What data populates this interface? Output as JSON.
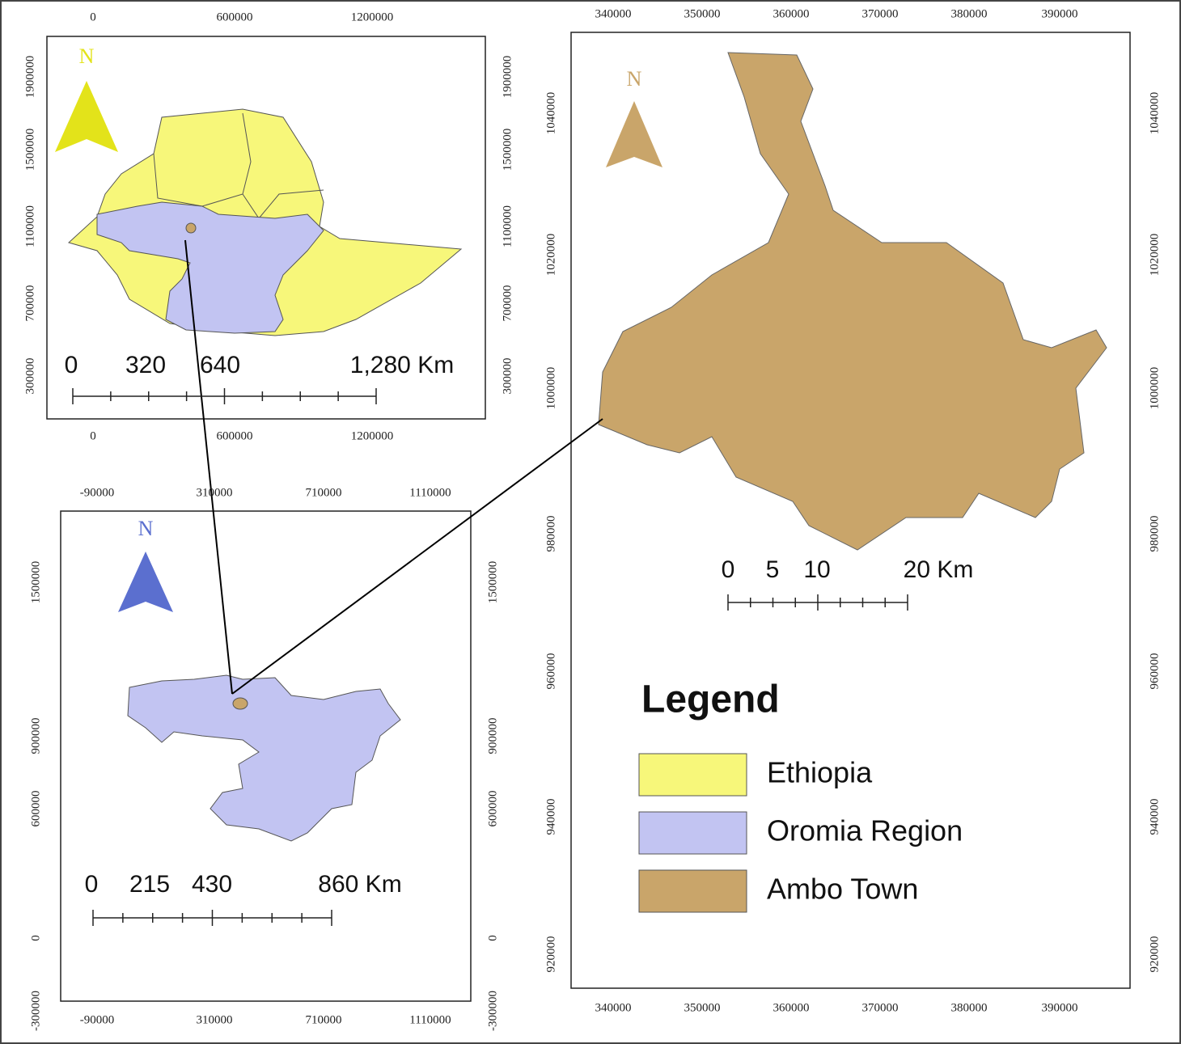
{
  "ethiopia_map": {
    "north": "N",
    "top_ticks": [
      "0",
      "600000",
      "1200000"
    ],
    "bottom_ticks": [
      "0",
      "600000",
      "1200000"
    ],
    "left_ticks": [
      "300000",
      "700000",
      "1100000",
      "1500000",
      "1900000"
    ],
    "right_ticks": [
      "300000",
      "700000",
      "1100000",
      "1500000",
      "1900000"
    ],
    "scale_labels": [
      "0",
      "320",
      "640",
      "1,280 Km"
    ]
  },
  "oromia_map": {
    "north": "N",
    "top_ticks": [
      "-90000",
      "310000",
      "710000",
      "1110000"
    ],
    "bottom_ticks": [
      "-90000",
      "310000",
      "710000",
      "1110000"
    ],
    "left_ticks": [
      "-300000",
      "0",
      "600000",
      "900000",
      "1500000"
    ],
    "right_ticks": [
      "-300000",
      "0",
      "600000",
      "900000",
      "1500000"
    ],
    "scale_labels": [
      "0",
      "215",
      "430",
      "860 Km"
    ]
  },
  "ambo_map": {
    "north": "N",
    "top_ticks": [
      "340000",
      "350000",
      "360000",
      "370000",
      "380000",
      "390000"
    ],
    "bottom_ticks": [
      "340000",
      "350000",
      "360000",
      "370000",
      "380000",
      "390000"
    ],
    "left_ticks": [
      "920000",
      "940000",
      "960000",
      "980000",
      "1000000",
      "1020000",
      "1040000"
    ],
    "right_ticks": [
      "920000",
      "940000",
      "960000",
      "980000",
      "1000000",
      "1020000",
      "1040000"
    ],
    "scale_labels": [
      "0",
      "5",
      "10",
      "20 Km"
    ]
  },
  "legend": {
    "title": "Legend",
    "items": [
      "Ethiopia",
      "Oromia Region",
      "Ambo Town"
    ]
  }
}
